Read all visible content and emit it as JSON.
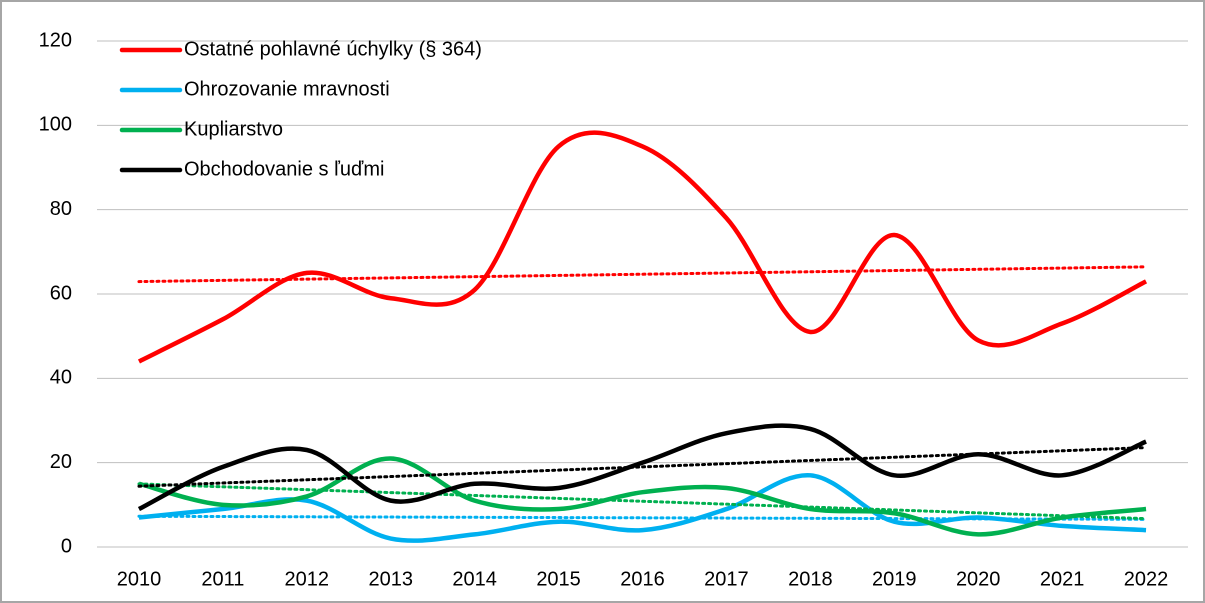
{
  "chart_data": {
    "type": "line",
    "categories": [
      "2010",
      "2011",
      "2012",
      "2013",
      "2014",
      "2015",
      "2016",
      "2017",
      "2018",
      "2019",
      "2020",
      "2021",
      "2022"
    ],
    "series": [
      {
        "name": "Ostatné pohlavné úchylky (§ 364)",
        "color": "#ff0000",
        "values": [
          44,
          54,
          65,
          59,
          61,
          95,
          95,
          78,
          51,
          74,
          49,
          53,
          63
        ]
      },
      {
        "name": "Ohrozovanie mravnosti",
        "color": "#00b0f0",
        "values": [
          7,
          9,
          11,
          2,
          3,
          6,
          4,
          9,
          17,
          6,
          7,
          5,
          4
        ]
      },
      {
        "name": "Kupliarstvo",
        "color": "#00b050",
        "values": [
          15,
          10,
          12,
          21,
          11,
          9,
          13,
          14,
          9,
          8,
          3,
          7,
          9
        ]
      },
      {
        "name": "Obchodovanie s ľuďmi",
        "color": "#000000",
        "values": [
          9,
          19,
          23,
          11,
          15,
          14,
          20,
          27,
          28,
          17,
          22,
          17,
          25
        ]
      }
    ],
    "ylim": [
      0,
      120
    ],
    "yticks": [
      0,
      20,
      40,
      60,
      80,
      100,
      120
    ],
    "grid": true,
    "smooth": true,
    "trendline": true,
    "legend": "top-left"
  }
}
